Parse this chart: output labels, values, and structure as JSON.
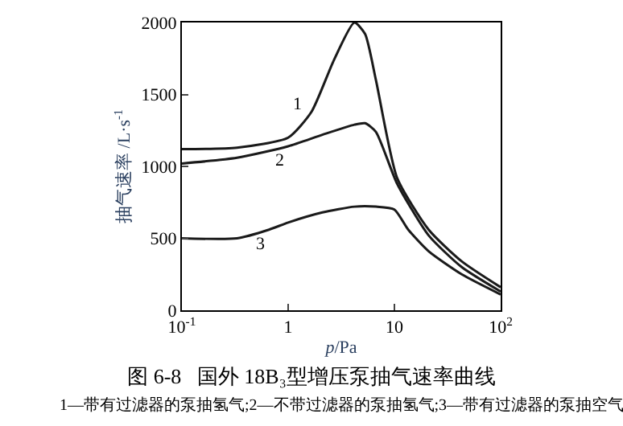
{
  "chart_data": {
    "type": "line",
    "title": "图 6-8   国外 18B₃型增压泵抽气速率曲线",
    "xlabel": "p/Pa",
    "ylabel": "抽气速率 /L·s$^{-1}$",
    "log": "x",
    "legend": false,
    "marker": "none",
    "line_style": "solid",
    "xlim": [
      0.1,
      100
    ],
    "xticks": [
      {
        "value": 0.1,
        "label": "10$^{-1}$"
      },
      1,
      10,
      {
        "value": 100,
        "label": "10$^{2}$"
      }
    ],
    "ylim": [
      0,
      2000
    ],
    "yticks": [
      0,
      500,
      1000,
      1500,
      2000
    ],
    "series": [
      {
        "name": "1",
        "color": "#1a1a1a",
        "x": [
          0.1,
          0.33,
          1.0,
          1.66,
          2.7,
          4.2,
          5.3,
          6.7,
          10.6,
          21,
          43,
          100
        ],
        "values": [
          1120,
          1130,
          1200,
          1380,
          1740,
          2000,
          1920,
          1600,
          920,
          560,
          340,
          160
        ]
      },
      {
        "name": "2",
        "color": "#1a1a1a",
        "x": [
          0.1,
          0.33,
          1.0,
          2.1,
          4.2,
          5.3,
          6.7,
          10.6,
          21,
          43,
          100
        ],
        "values": [
          1020,
          1060,
          1140,
          1220,
          1290,
          1300,
          1240,
          880,
          520,
          300,
          130
        ]
      },
      {
        "name": "3",
        "color": "#1a1a1a",
        "x": [
          0.1,
          0.33,
          0.66,
          1.0,
          2.1,
          4.2,
          6.7,
          10,
          13.5,
          21,
          43,
          100
        ],
        "values": [
          500,
          500,
          560,
          610,
          680,
          720,
          720,
          700,
          560,
          410,
          250,
          110
        ]
      }
    ],
    "annotations": [
      "1—带有过滤器的泵抽氢气;2—不带过滤器的泵抽氢气;3—带有过滤器的泵抽空气"
    ]
  }
}
